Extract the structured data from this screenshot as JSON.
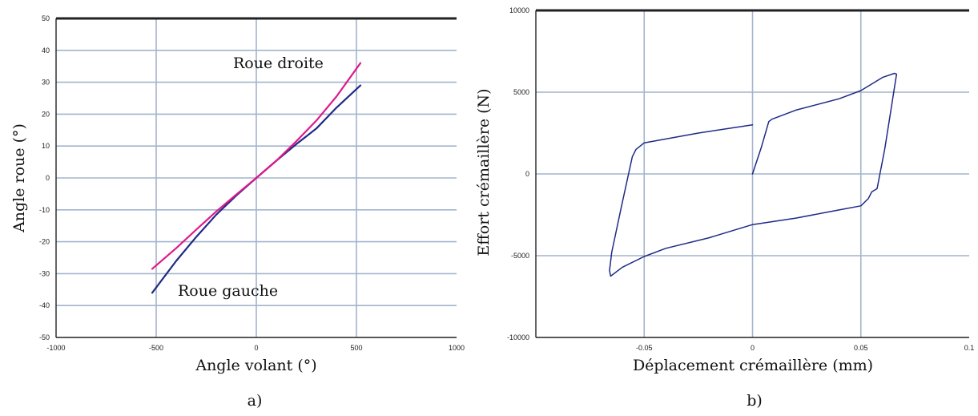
{
  "colors": {
    "grid": "#a3b4cc",
    "frame": "#222222",
    "navy": "#1f2a86",
    "magenta": "#e0188c"
  },
  "chart_data": [
    {
      "type": "line",
      "caption": "a)",
      "xlabel": "Angle volant (°)",
      "ylabel": "Angle roue (°)",
      "xlim": [
        -1000,
        1000
      ],
      "ylim": [
        -50,
        50
      ],
      "x_ticks": [
        -1000,
        -500,
        0,
        500,
        1000
      ],
      "y_ticks": [
        -50,
        -40,
        -30,
        -20,
        -10,
        0,
        10,
        20,
        30,
        40,
        50
      ],
      "x_tick_labels": [
        "-1000",
        "-500",
        "0",
        "500",
        "1000"
      ],
      "y_tick_labels": [
        "-50",
        "-40",
        "-30",
        "-20",
        "-10",
        "0",
        "10",
        "20",
        "30",
        "40",
        "50"
      ],
      "grid": true,
      "annotations": [
        {
          "text": "Roue droite",
          "x": 520,
          "y": 36
        },
        {
          "text": "Roue gauche",
          "x": -520,
          "y": -36
        }
      ],
      "series": [
        {
          "color": "#1f2a86",
          "points": [
            [
              -520,
              -36
            ],
            [
              -400,
              -26
            ],
            [
              -300,
              -18.5
            ],
            [
              -200,
              -11.5
            ],
            [
              -100,
              -5.5
            ],
            [
              0,
              0
            ],
            [
              100,
              5.4
            ],
            [
              200,
              10.6
            ],
            [
              300,
              15.5
            ],
            [
              400,
              22
            ],
            [
              520,
              29
            ]
          ]
        },
        {
          "color": "#e0188c",
          "points": [
            [
              -520,
              -28.5
            ],
            [
              -400,
              -22
            ],
            [
              -300,
              -16.2
            ],
            [
              -200,
              -10.5
            ],
            [
              -100,
              -5.2
            ],
            [
              0,
              0
            ],
            [
              100,
              5.4
            ],
            [
              200,
              11.5
            ],
            [
              300,
              18
            ],
            [
              400,
              25.5
            ],
            [
              520,
              36
            ]
          ]
        }
      ]
    },
    {
      "type": "line",
      "caption": "b)",
      "xlabel": "Déplacement crémaillère (mm)",
      "ylabel": "Effort crémaillère (N)",
      "xlim": [
        -0.1,
        0.1
      ],
      "ylim": [
        -10000,
        10000
      ],
      "x_ticks": [
        -0.05,
        0,
        0.05,
        0.1
      ],
      "y_ticks": [
        -10000,
        -5000,
        0,
        5000,
        10000
      ],
      "x_tick_labels": [
        "-0.05",
        "0",
        "0.05",
        "0.1"
      ],
      "y_tick_labels": [
        "-10000",
        "-5000",
        "0",
        "5000",
        "10000"
      ],
      "grid": true,
      "series": [
        {
          "color": "#1f2a86",
          "points": [
            [
              0,
              3000
            ],
            [
              -0.025,
              2500
            ],
            [
              -0.05,
              1900
            ],
            [
              -0.0538,
              1500
            ],
            [
              -0.0555,
              1050
            ],
            [
              -0.0605,
              -2000
            ],
            [
              -0.065,
              -4800
            ],
            [
              -0.066,
              -5900
            ],
            [
              -0.0655,
              -6250
            ],
            [
              -0.065,
              -6200
            ],
            [
              -0.06,
              -5700
            ],
            [
              -0.05,
              -5050
            ],
            [
              -0.04,
              -4550
            ],
            [
              -0.02,
              -3900
            ],
            [
              0,
              -3100
            ],
            [
              0.02,
              -2700
            ],
            [
              0.04,
              -2200
            ],
            [
              0.05,
              -1950
            ],
            [
              0.0535,
              -1500
            ],
            [
              0.055,
              -1100
            ],
            [
              0.0575,
              -900
            ],
            [
              0.061,
              1500
            ],
            [
              0.064,
              4000
            ],
            [
              0.066,
              5700
            ],
            [
              0.0665,
              6100
            ],
            [
              0.0655,
              6150
            ],
            [
              0.06,
              5900
            ],
            [
              0.05,
              5100
            ],
            [
              0.04,
              4600
            ],
            [
              0.02,
              3900
            ],
            [
              0.009,
              3350
            ],
            [
              0.0075,
              3200
            ],
            [
              0.004,
              1600
            ],
            [
              0,
              0
            ]
          ]
        }
      ]
    }
  ]
}
